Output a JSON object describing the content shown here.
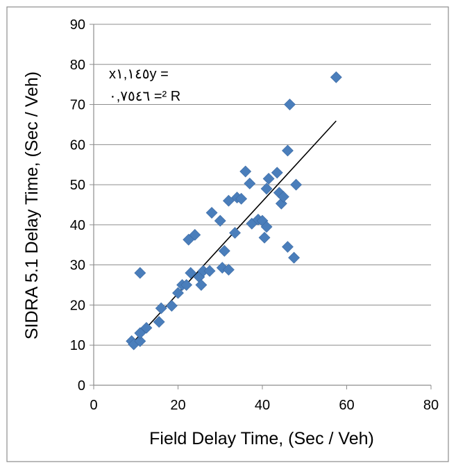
{
  "chart_data": {
    "type": "scatter",
    "title": "",
    "xlabel": "Field Delay Time, (Sec / Veh)",
    "ylabel": "SIDRA 5.1 Delay Time, (Sec / Veh)",
    "xlim": [
      0,
      80
    ],
    "ylim": [
      0,
      90
    ],
    "x_ticks": [
      "0",
      "20",
      "40",
      "60",
      "80"
    ],
    "y_ticks": [
      "0",
      "10",
      "20",
      "30",
      "40",
      "50",
      "60",
      "70",
      "80",
      "90"
    ],
    "grid": "horizontal",
    "legend": "none",
    "marker_color": "#4a7ebb",
    "trendline": {
      "x": [
        9,
        57.5
      ],
      "y": [
        10.3,
        65.9
      ],
      "color": "#000000"
    },
    "annotation": {
      "line1": "x١,١٤٥y =",
      "line2": "٠,٧٥٤٦ =² R"
    },
    "series": [
      {
        "points": [
          [
            9,
            11
          ],
          [
            9.5,
            10.2
          ],
          [
            11,
            11
          ],
          [
            11,
            13
          ],
          [
            11,
            28
          ],
          [
            12.5,
            14.3
          ],
          [
            15.5,
            15.8
          ],
          [
            16,
            19.2
          ],
          [
            18.5,
            19.8
          ],
          [
            20,
            23
          ],
          [
            21,
            25
          ],
          [
            22,
            25
          ],
          [
            22.5,
            36.3
          ],
          [
            23,
            28
          ],
          [
            24,
            37.5
          ],
          [
            25,
            27
          ],
          [
            25.5,
            25
          ],
          [
            26,
            28.5
          ],
          [
            27.5,
            28.5
          ],
          [
            28,
            43
          ],
          [
            30,
            41
          ],
          [
            30.5,
            29.3
          ],
          [
            31,
            33.5
          ],
          [
            32,
            28.8
          ],
          [
            32,
            46
          ],
          [
            33.5,
            38
          ],
          [
            34,
            46.8
          ],
          [
            35,
            46.5
          ],
          [
            36,
            53.3
          ],
          [
            37,
            50.3
          ],
          [
            37.5,
            40.3
          ],
          [
            39,
            41.3
          ],
          [
            40,
            41
          ],
          [
            40.5,
            36.8
          ],
          [
            41,
            39.5
          ],
          [
            41,
            49
          ],
          [
            41.5,
            51.5
          ],
          [
            43.5,
            53
          ],
          [
            44,
            48
          ],
          [
            44.5,
            45.3
          ],
          [
            45,
            47
          ],
          [
            46,
            34.5
          ],
          [
            46,
            58.5
          ],
          [
            46.5,
            70
          ],
          [
            47.5,
            31.8
          ],
          [
            48,
            50
          ],
          [
            57.5,
            76.8
          ]
        ]
      }
    ]
  }
}
